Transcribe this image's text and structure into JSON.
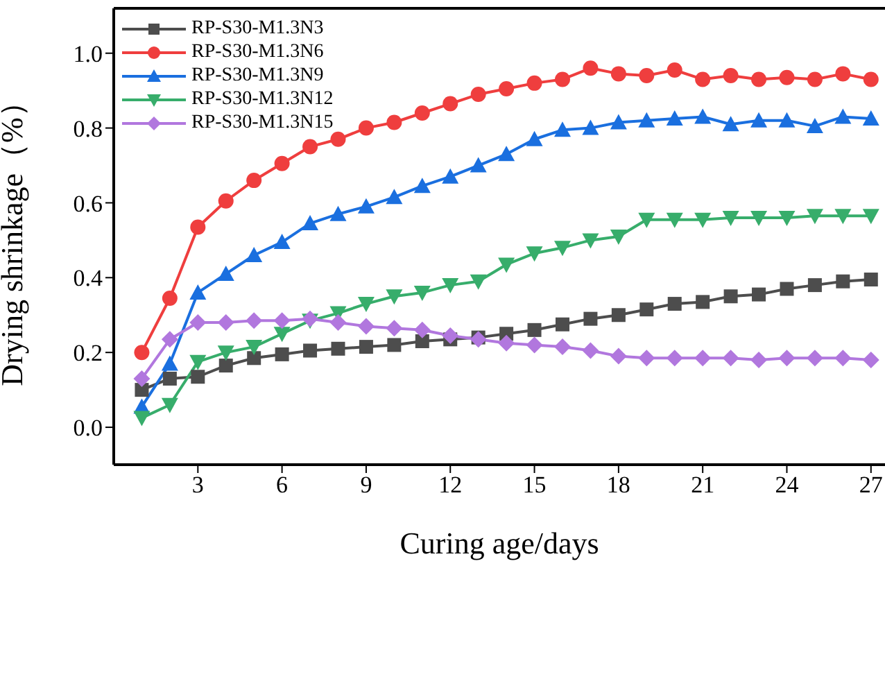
{
  "chart_data": {
    "type": "line",
    "xlabel": "Curing age/days",
    "ylabel": "Drying shrinkage（%）",
    "x": [
      1,
      2,
      3,
      4,
      5,
      6,
      7,
      8,
      9,
      10,
      11,
      12,
      13,
      14,
      15,
      16,
      17,
      18,
      19,
      20,
      21,
      22,
      23,
      24,
      25,
      26,
      27
    ],
    "xlim": [
      0,
      27.5
    ],
    "xticks": [
      3,
      6,
      9,
      12,
      15,
      18,
      21,
      24,
      27
    ],
    "ylim": [
      -0.1,
      1.12
    ],
    "yticks": [
      {
        "value": 0,
        "label": "0.0"
      },
      0.2,
      0.4,
      0.6,
      0.8,
      {
        "value": 1,
        "label": "1.0"
      }
    ],
    "grid": false,
    "legend": "top left",
    "line_style": "solid",
    "series": [
      {
        "name": "RP-S30-M1.3N3",
        "color": "#4d4d4d",
        "marker": "square",
        "values": [
          0.1,
          0.13,
          0.135,
          0.165,
          0.185,
          0.195,
          0.205,
          0.21,
          0.215,
          0.22,
          0.23,
          0.235,
          0.24,
          0.25,
          0.26,
          0.275,
          0.29,
          0.3,
          0.315,
          0.33,
          0.335,
          0.35,
          0.355,
          0.37,
          0.38,
          0.39,
          0.395
        ]
      },
      {
        "name": "RP-S30-M1.3N6",
        "color": "#ef3e3e",
        "marker": "circle",
        "values": [
          0.2,
          0.345,
          0.535,
          0.605,
          0.66,
          0.705,
          0.75,
          0.77,
          0.8,
          0.815,
          0.84,
          0.865,
          0.89,
          0.905,
          0.92,
          0.93,
          0.96,
          0.945,
          0.94,
          0.955,
          0.93,
          0.94,
          0.93,
          0.935,
          0.93,
          0.945,
          0.93
        ]
      },
      {
        "name": "RP-S30-M1.3N9",
        "color": "#1a6fdf",
        "marker": "triangle",
        "values": [
          0.055,
          0.17,
          0.36,
          0.41,
          0.46,
          0.495,
          0.545,
          0.57,
          0.59,
          0.615,
          0.645,
          0.67,
          0.7,
          0.73,
          0.77,
          0.795,
          0.8,
          0.815,
          0.82,
          0.825,
          0.83,
          0.81,
          0.82,
          0.82,
          0.805,
          0.83,
          0.825
        ]
      },
      {
        "name": "RP-S30-M1.3N12",
        "color": "#37ad6b",
        "marker": "triangle-down",
        "values": [
          0.025,
          0.06,
          0.175,
          0.2,
          0.215,
          0.25,
          0.285,
          0.305,
          0.33,
          0.35,
          0.36,
          0.38,
          0.39,
          0.435,
          0.465,
          0.48,
          0.5,
          0.51,
          0.555,
          0.555,
          0.555,
          0.56,
          0.56,
          0.56,
          0.565,
          0.565,
          0.565
        ]
      },
      {
        "name": "RP-S30-M1.3N15",
        "color": "#b177de",
        "marker": "diamond",
        "values": [
          0.13,
          0.235,
          0.28,
          0.28,
          0.285,
          0.285,
          0.29,
          0.28,
          0.27,
          0.265,
          0.26,
          0.245,
          0.235,
          0.225,
          0.22,
          0.215,
          0.205,
          0.19,
          0.185,
          0.185,
          0.185,
          0.185,
          0.18,
          0.185,
          0.185,
          0.185,
          0.18
        ]
      }
    ]
  }
}
